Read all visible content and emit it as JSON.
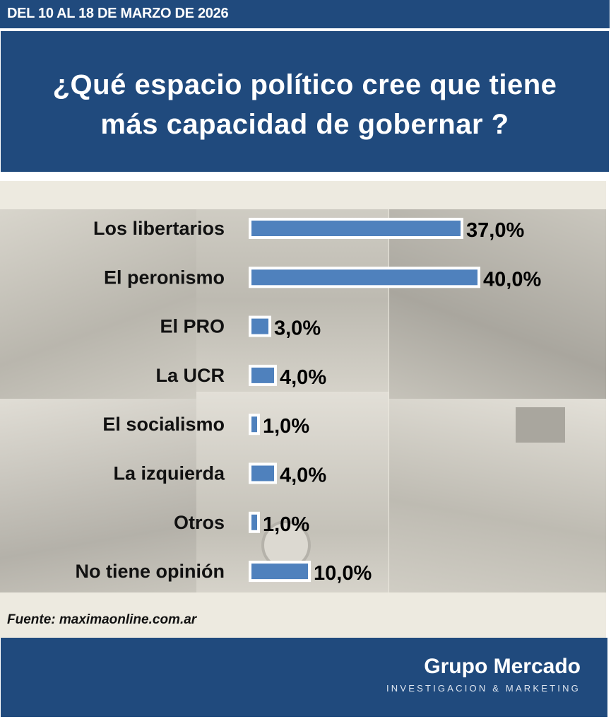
{
  "header": {
    "date_range": "DEL 10 AL 18 DE MARZO DE 2026",
    "title_line1": "¿Qué espacio político cree que tiene",
    "title_line2": "más capacidad de gobernar ?"
  },
  "chart_data": {
    "type": "bar",
    "orientation": "horizontal",
    "title": "¿Qué espacio político cree que tiene más capacidad de gobernar ?",
    "categories": [
      "Los libertarios",
      "El peronismo",
      "El PRO",
      "La UCR",
      "El socialismo",
      "La izquierda",
      "Otros",
      "No tiene opinión"
    ],
    "values": [
      37,
      40,
      3,
      4,
      1,
      4,
      1,
      10
    ],
    "value_labels": [
      "37,0%",
      "40,0%",
      "3,0%",
      "4,0%",
      "1,0%",
      "4,0%",
      "1,0%",
      "10,0%"
    ],
    "unit": "%",
    "xlim": [
      0,
      40
    ],
    "grid": false,
    "bar_color": "#4f81bd"
  },
  "source": "Fuente: maximaonline.com.ar",
  "footer": {
    "brand": "Grupo Mercado",
    "tagline": "INVESTIGACION & MARKETING"
  },
  "colors": {
    "navy": "#204a7d",
    "panel": "#edeae0"
  }
}
